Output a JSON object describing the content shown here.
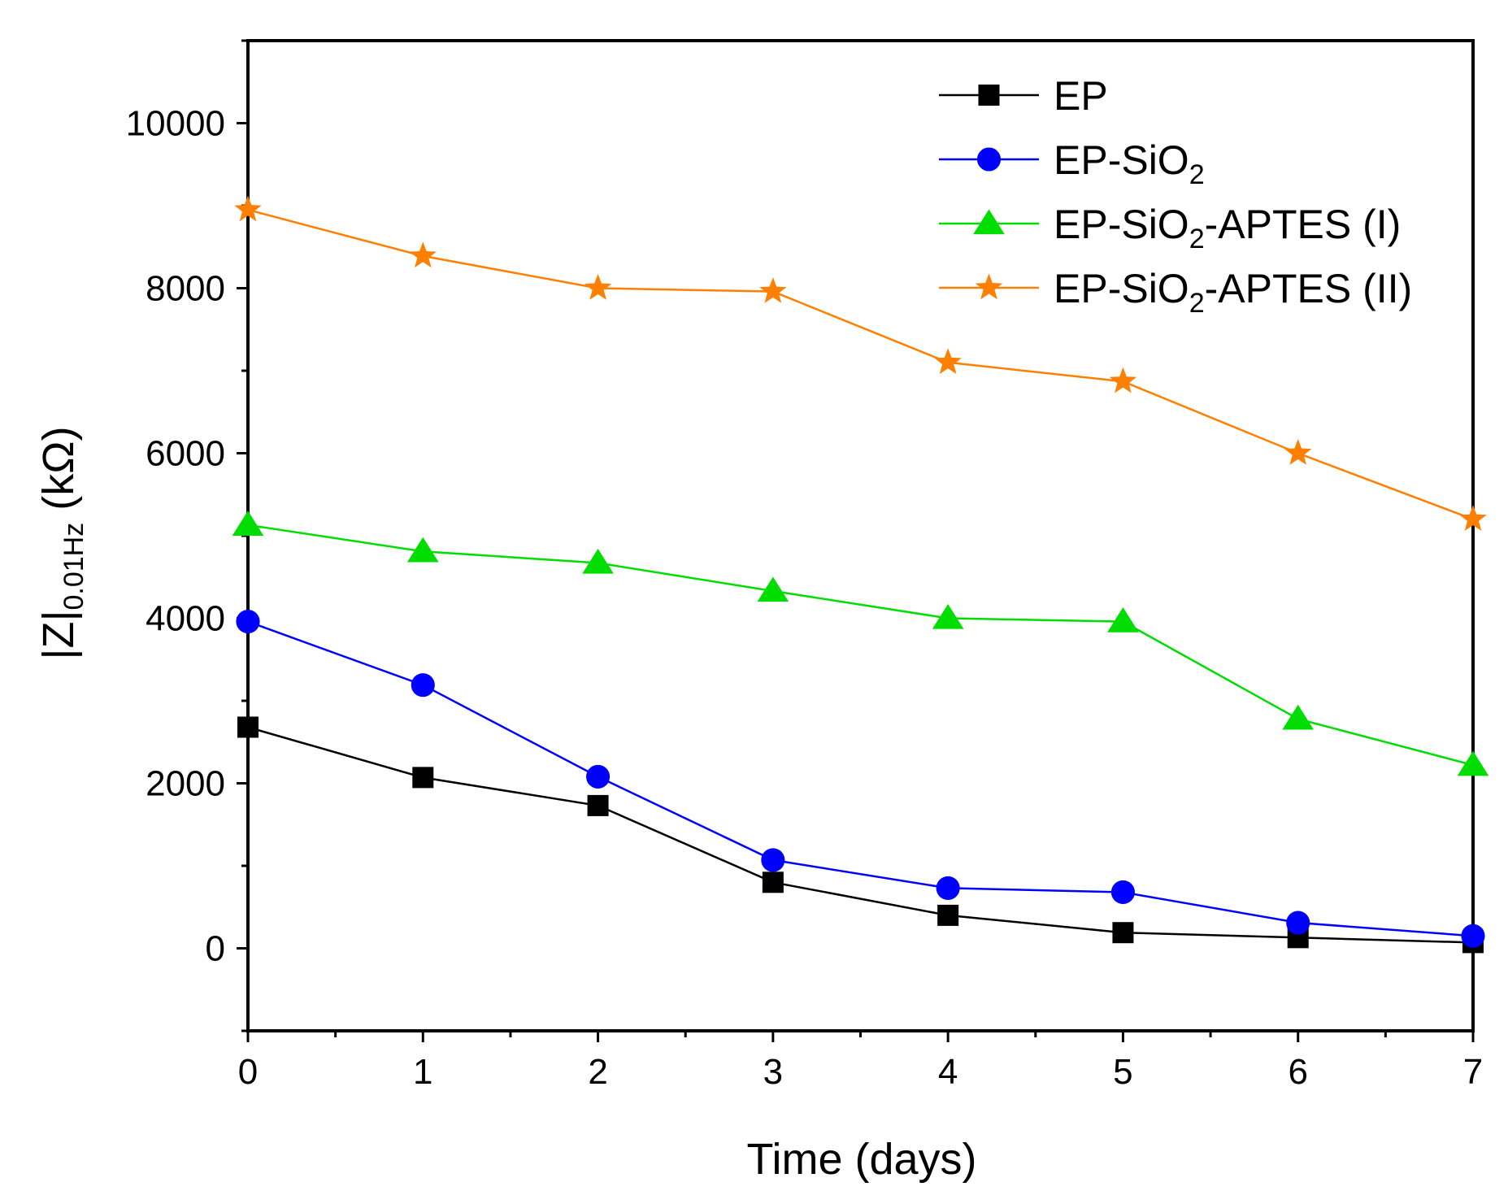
{
  "chart_data": {
    "type": "line",
    "title": "",
    "xlabel": "Time (days)",
    "ylabel": {
      "main": "|Z|",
      "subscript": "0.01Hz",
      "unit": " (kΩ)"
    },
    "x": [
      0,
      1,
      2,
      3,
      4,
      5,
      6,
      7
    ],
    "xlim": [
      0,
      7
    ],
    "ylim": [
      -1000,
      11000
    ],
    "xticks": [
      "0",
      "1",
      "2",
      "3",
      "4",
      "5",
      "6",
      "7"
    ],
    "yticks": [
      "0",
      "2000",
      "4000",
      "6000",
      "8000",
      "10000"
    ],
    "legend_position": "top-right",
    "grid": false,
    "series": [
      {
        "name": "EP",
        "label_parts": [
          "EP"
        ],
        "color": "#000000",
        "marker": "square",
        "values": [
          2680,
          2070,
          1730,
          800,
          400,
          190,
          130,
          70
        ]
      },
      {
        "name": "EP-SiO2",
        "label_parts": [
          "EP-SiO",
          "2"
        ],
        "color": "#0000ff",
        "marker": "circle",
        "values": [
          3960,
          3190,
          2080,
          1070,
          730,
          680,
          310,
          150
        ]
      },
      {
        "name": "EP-SiO2-APTES (I)",
        "label_parts": [
          "EP-SiO",
          "2",
          "-APTES (I)"
        ],
        "color": "#00dd00",
        "marker": "triangle",
        "values": [
          5130,
          4810,
          4670,
          4330,
          4000,
          3960,
          2780,
          2220
        ]
      },
      {
        "name": "EP-SiO2-APTES (II)",
        "label_parts": [
          "EP-SiO",
          "2",
          "-APTES (II)"
        ],
        "color": "#ff8000",
        "marker": "star",
        "values": [
          8950,
          8390,
          8000,
          7960,
          7100,
          6870,
          6000,
          5200
        ]
      }
    ]
  }
}
